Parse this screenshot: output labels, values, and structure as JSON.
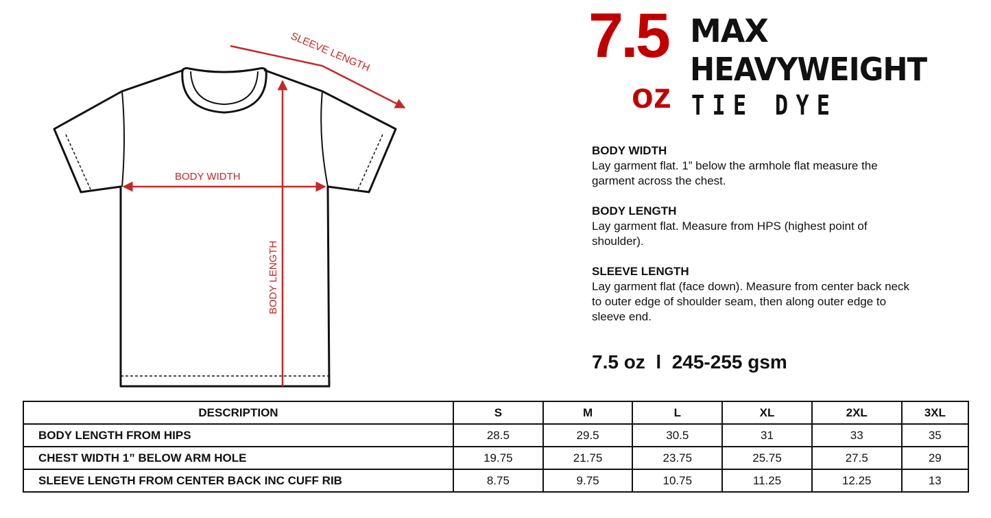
{
  "diagram": {
    "labels": {
      "sleeve_length": "SLEEVE LENGTH",
      "body_width": "BODY WIDTH",
      "body_length": "BODY LENGTH"
    },
    "accent_color": "#c62828"
  },
  "logo": {
    "weight_number": "7.5",
    "weight_unit": "oz",
    "line1": "MAX",
    "line2": "HEAVYWEIGHT",
    "line3": "TIE DYE",
    "accent_color": "#c00000"
  },
  "instructions": [
    {
      "title": "BODY WIDTH",
      "text": "Lay garment flat. 1” below the armhole flat measure the garment across the chest."
    },
    {
      "title": "BODY LENGTH",
      "text": "Lay garment flat. Measure from HPS (highest point of shoulder)."
    },
    {
      "title": "SLEEVE LENGTH",
      "text": "Lay garment flat (face down). Measure from center back neck to outer edge of shoulder seam, then along outer edge to sleeve end."
    }
  ],
  "weight": "7.5 oz  l  245-255 gsm",
  "size_table": {
    "headers": [
      "DESCRIPTION",
      "S",
      "M",
      "L",
      "XL",
      "2XL",
      "3XL"
    ],
    "rows": [
      [
        "BODY LENGTH FROM HIPS",
        "28.5",
        "29.5",
        "30.5",
        "31",
        "33",
        "35"
      ],
      [
        "CHEST WIDTH 1” BELOW ARM HOLE",
        "19.75",
        "21.75",
        "23.75",
        "25.75",
        "27.5",
        "29"
      ],
      [
        "SLEEVE LENGTH FROM CENTER BACK INC CUFF RIB",
        "8.75",
        "9.75",
        "10.75",
        "11.25",
        "12.25",
        "13"
      ]
    ]
  }
}
